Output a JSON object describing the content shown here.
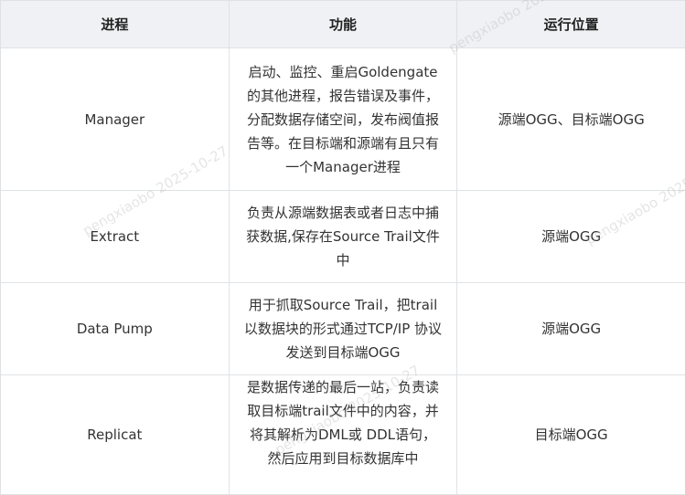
{
  "table": {
    "headers": [
      "进程",
      "功能",
      "运行位置"
    ],
    "rows": [
      {
        "process": "Manager",
        "function": "启动、监控、重启Goldengate的其他进程，报告错误及事件，分配数据存储空间，发布阀值报告等。在目标端和源端有且只有一个Manager进程",
        "location": "源端OGG、目标端OGG"
      },
      {
        "process": "Extract",
        "function": "负责从源端数据表或者日志中捕获数据,保存在Source Trail文件中",
        "location": "源端OGG"
      },
      {
        "process": "Data Pump",
        "function": "用于抓取Source Trail，把trail以数据块的形式通过TCP/IP 协议发送到目标端OGG",
        "location": "源端OGG"
      },
      {
        "process": "Replicat",
        "function": "是数据传递的最后一站，负责读取目标端trail文件中的内容，并将其解析为DML或 DDL语句，然后应用到目标数据库中",
        "location": "目标端OGG"
      }
    ]
  },
  "watermark": "pengxiaobo 2025-10-27"
}
